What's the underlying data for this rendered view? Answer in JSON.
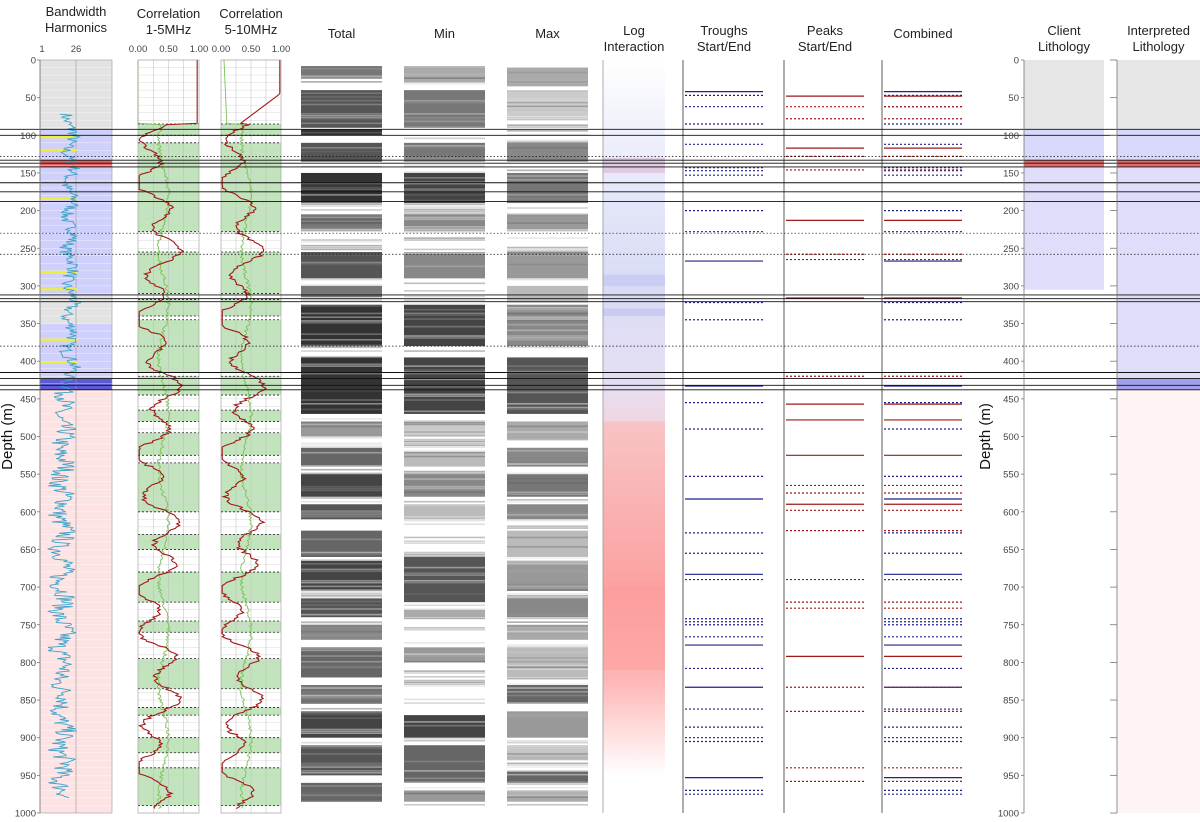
{
  "chart_data": {
    "type": "well-log",
    "depth_axis": {
      "label": "Depth (m)",
      "ylim": [
        0,
        1000
      ],
      "ticks": [
        0,
        50,
        100,
        150,
        200,
        250,
        300,
        350,
        400,
        450,
        500,
        550,
        600,
        650,
        700,
        750,
        800,
        850,
        900,
        950,
        1000
      ]
    },
    "tracks": [
      {
        "key": "bw",
        "title": [
          "Bandwidth",
          "Harmonics"
        ],
        "scale": [
          "1",
          "26"
        ]
      },
      {
        "key": "corr1",
        "title": [
          "Correlation",
          "1-5MHz"
        ],
        "scale": [
          "0.00",
          "0.50",
          "1.00"
        ]
      },
      {
        "key": "corr2",
        "title": [
          "Correlation",
          "5-10MHz"
        ],
        "scale": [
          "0.00",
          "0.50",
          "1.00"
        ]
      },
      {
        "key": "total",
        "title": [
          "Total"
        ]
      },
      {
        "key": "min",
        "title": [
          "Min"
        ]
      },
      {
        "key": "max",
        "title": [
          "Max"
        ]
      },
      {
        "key": "log",
        "title": [
          "Log",
          "Interaction"
        ]
      },
      {
        "key": "troughs",
        "title": [
          "Troughs",
          "Start/End"
        ]
      },
      {
        "key": "peaks",
        "title": [
          "Peaks",
          "Start/End"
        ]
      },
      {
        "key": "combined",
        "title": [
          "Combined"
        ]
      },
      {
        "key": "client",
        "title": [
          "Client",
          "Lithology"
        ]
      },
      {
        "key": "interp",
        "title": [
          "Interpreted",
          "Lithology"
        ]
      }
    ],
    "boundaries_solid": [
      92,
      100,
      133,
      137,
      142,
      163,
      175,
      188,
      312,
      317,
      321,
      415,
      423,
      432,
      438
    ],
    "boundaries_dotted": [
      128,
      230,
      258,
      380
    ],
    "bw_background_zones": [
      {
        "from": 0,
        "to": 92,
        "color": "#e3e3e3"
      },
      {
        "from": 92,
        "to": 133,
        "color": "#cfd0fb"
      },
      {
        "from": 133,
        "to": 142,
        "color": "#e26060"
      },
      {
        "from": 142,
        "to": 188,
        "color": "#cfd0fb"
      },
      {
        "from": 188,
        "to": 312,
        "color": "#cfd0fb"
      },
      {
        "from": 312,
        "to": 350,
        "color": "#e3e3e3"
      },
      {
        "from": 350,
        "to": 423,
        "color": "#cfd0fb"
      },
      {
        "from": 423,
        "to": 438,
        "color": "#5b5bd6"
      },
      {
        "from": 438,
        "to": 1000,
        "color": "#fde3e3"
      }
    ],
    "green_zones": [
      [
        85,
        100
      ],
      [
        110,
        228
      ],
      [
        255,
        310
      ],
      [
        318,
        340
      ],
      [
        345,
        415
      ],
      [
        420,
        445
      ],
      [
        465,
        480
      ],
      [
        495,
        525
      ],
      [
        535,
        600
      ],
      [
        630,
        650
      ],
      [
        680,
        720
      ],
      [
        745,
        760
      ],
      [
        795,
        835
      ],
      [
        860,
        870
      ],
      [
        900,
        920
      ],
      [
        940,
        990
      ]
    ],
    "total_dark": [
      [
        8,
        25,
        "#777"
      ],
      [
        40,
        90,
        "#555"
      ],
      [
        92,
        100,
        "#333"
      ],
      [
        110,
        135,
        "#555"
      ],
      [
        150,
        190,
        "#333"
      ],
      [
        205,
        225,
        "#666"
      ],
      [
        255,
        290,
        "#555"
      ],
      [
        300,
        315,
        "#777"
      ],
      [
        325,
        380,
        "#333"
      ],
      [
        395,
        470,
        "#333"
      ],
      [
        480,
        500,
        "#999"
      ],
      [
        515,
        540,
        "#666"
      ],
      [
        550,
        580,
        "#444"
      ],
      [
        590,
        610,
        "#555"
      ],
      [
        625,
        660,
        "#666"
      ],
      [
        665,
        705,
        "#444"
      ],
      [
        715,
        740,
        "#555"
      ],
      [
        750,
        770,
        "#888"
      ],
      [
        780,
        820,
        "#666"
      ],
      [
        830,
        855,
        "#777"
      ],
      [
        865,
        900,
        "#444"
      ],
      [
        910,
        950,
        "#555"
      ],
      [
        960,
        985,
        "#666"
      ]
    ],
    "min_dark": [
      [
        8,
        30,
        "#aaa"
      ],
      [
        40,
        90,
        "#777"
      ],
      [
        110,
        135,
        "#777"
      ],
      [
        150,
        190,
        "#444"
      ],
      [
        205,
        225,
        "#888"
      ],
      [
        255,
        290,
        "#888"
      ],
      [
        325,
        380,
        "#444"
      ],
      [
        395,
        470,
        "#444"
      ],
      [
        480,
        500,
        "#ccc"
      ],
      [
        520,
        540,
        "#bbb"
      ],
      [
        550,
        580,
        "#888"
      ],
      [
        590,
        610,
        "#bbb"
      ],
      [
        660,
        720,
        "#555"
      ],
      [
        730,
        740,
        "#aaa"
      ],
      [
        780,
        800,
        "#999"
      ],
      [
        870,
        900,
        "#444"
      ],
      [
        910,
        960,
        "#666"
      ],
      [
        970,
        985,
        "#999"
      ]
    ],
    "max_dark": [
      [
        10,
        35,
        "#aaa"
      ],
      [
        40,
        75,
        "#ccc"
      ],
      [
        110,
        135,
        "#888"
      ],
      [
        150,
        190,
        "#777"
      ],
      [
        205,
        225,
        "#999"
      ],
      [
        255,
        290,
        "#999"
      ],
      [
        300,
        320,
        "#bbb"
      ],
      [
        325,
        380,
        "#888"
      ],
      [
        395,
        470,
        "#555"
      ],
      [
        480,
        505,
        "#aaa"
      ],
      [
        515,
        540,
        "#888"
      ],
      [
        550,
        580,
        "#777"
      ],
      [
        590,
        610,
        "#888"
      ],
      [
        625,
        660,
        "#bbb"
      ],
      [
        665,
        705,
        "#999"
      ],
      [
        715,
        740,
        "#888"
      ],
      [
        750,
        770,
        "#aaa"
      ],
      [
        780,
        820,
        "#bbb"
      ],
      [
        830,
        855,
        "#666"
      ],
      [
        865,
        900,
        "#999"
      ],
      [
        910,
        930,
        "#bbb"
      ],
      [
        945,
        960,
        "#666"
      ],
      [
        970,
        985,
        "#aaa"
      ]
    ],
    "log_interaction_bands": [
      [
        130,
        150,
        "#d5a4c8"
      ],
      [
        285,
        300,
        "#b9bdf2"
      ],
      [
        330,
        340,
        "#b3b8f0"
      ],
      [
        340,
        440,
        "#dfe0f8"
      ],
      [
        440,
        480,
        "#e9dff0"
      ],
      [
        480,
        820,
        "#f8b7b7"
      ],
      [
        700,
        810,
        "#ff9a9a"
      ]
    ],
    "troughs_solid": [
      42,
      267,
      433,
      583,
      683,
      777,
      833,
      953
    ],
    "troughs_dotted": [
      47,
      62,
      85,
      112,
      143,
      147,
      153,
      200,
      228,
      322,
      345,
      455,
      490,
      553,
      628,
      655,
      690,
      742,
      746,
      750,
      766,
      808,
      862,
      886,
      900,
      905,
      970,
      975
    ],
    "peaks_solid": [
      48,
      117,
      213,
      316,
      457,
      478,
      525,
      590,
      792
    ],
    "peaks_dotted": [
      62,
      78,
      128,
      146,
      258,
      265,
      420,
      565,
      575,
      598,
      625,
      690,
      720,
      728,
      833,
      865,
      940,
      958
    ],
    "client_zones": [
      {
        "from": 0,
        "to": 92,
        "color": "#e6e6e6"
      },
      {
        "from": 92,
        "to": 133,
        "color": "#d8d8fb"
      },
      {
        "from": 133,
        "to": 142,
        "color": "#e36a6a"
      },
      {
        "from": 142,
        "to": 305,
        "color": "#dedefb"
      }
    ],
    "interp_zones": [
      {
        "from": 0,
        "to": 92,
        "color": "#e6e6e6"
      },
      {
        "from": 92,
        "to": 133,
        "color": "#d8d8fb"
      },
      {
        "from": 133,
        "to": 142,
        "color": "#e36a6a"
      },
      {
        "from": 142,
        "to": 423,
        "color": "#dedefb"
      },
      {
        "from": 423,
        "to": 438,
        "color": "#a0a0ef"
      },
      {
        "from": 438,
        "to": 1000,
        "color": "#fff4f4"
      }
    ]
  }
}
